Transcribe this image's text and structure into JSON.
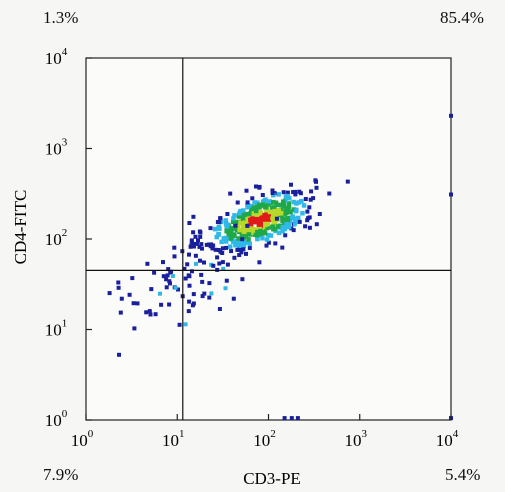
{
  "quadrant_labels": {
    "upper_left": "1.3%",
    "upper_right": "85.4%",
    "lower_left": "7.9%",
    "lower_right": "5.4%"
  },
  "chart_data": {
    "type": "scatter",
    "title": "",
    "xlabel": "CD3-PE",
    "ylabel": "CD4-FITC",
    "x_scale": "log",
    "y_scale": "log",
    "xlim": [
      1,
      10000
    ],
    "ylim": [
      1,
      10000
    ],
    "x_ticks": [
      {
        "base": "10",
        "exp": "0"
      },
      {
        "base": "10",
        "exp": "1"
      },
      {
        "base": "10",
        "exp": "2"
      },
      {
        "base": "10",
        "exp": "3"
      },
      {
        "base": "10",
        "exp": "4"
      }
    ],
    "y_ticks": [
      {
        "base": "10",
        "exp": "0"
      },
      {
        "base": "10",
        "exp": "1"
      },
      {
        "base": "10",
        "exp": "2"
      },
      {
        "base": "10",
        "exp": "3"
      },
      {
        "base": "10",
        "exp": "4"
      }
    ],
    "gates": {
      "x": 11.5,
      "y": 45
    },
    "quadrant_percentages": {
      "UL": "1.3%",
      "UR": "85.4%",
      "LL": "7.9%",
      "LR": "5.4%"
    },
    "density_colors": {
      "sparse": "#1a1f9c",
      "low": "#2fb8e8",
      "mid": "#1fa84a",
      "high": "#b8d82a",
      "peak": "#e01a1a"
    },
    "populations": [
      {
        "name": "",
        "x_center": 80,
        "y_center": 160,
        "x_spread_decades": 0.3,
        "y_spread_decades": 0.18,
        "count": 420,
        "density": "cluster"
      },
      {
        "name": "",
        "x_center": 12,
        "y_center": 40,
        "x_spread_decades": 0.4,
        "y_spread_decades": 0.28,
        "count": 90,
        "density": "sparse"
      }
    ],
    "edge_events": [
      {
        "x": 10000,
        "y": 2300
      },
      {
        "x": 10000,
        "y": 310
      },
      {
        "x": 10000,
        "y": 1.05
      },
      {
        "x": 150,
        "y": 1.05
      },
      {
        "x": 180,
        "y": 1.05
      },
      {
        "x": 210,
        "y": 1.05
      }
    ],
    "grid": false,
    "legend": "none"
  }
}
